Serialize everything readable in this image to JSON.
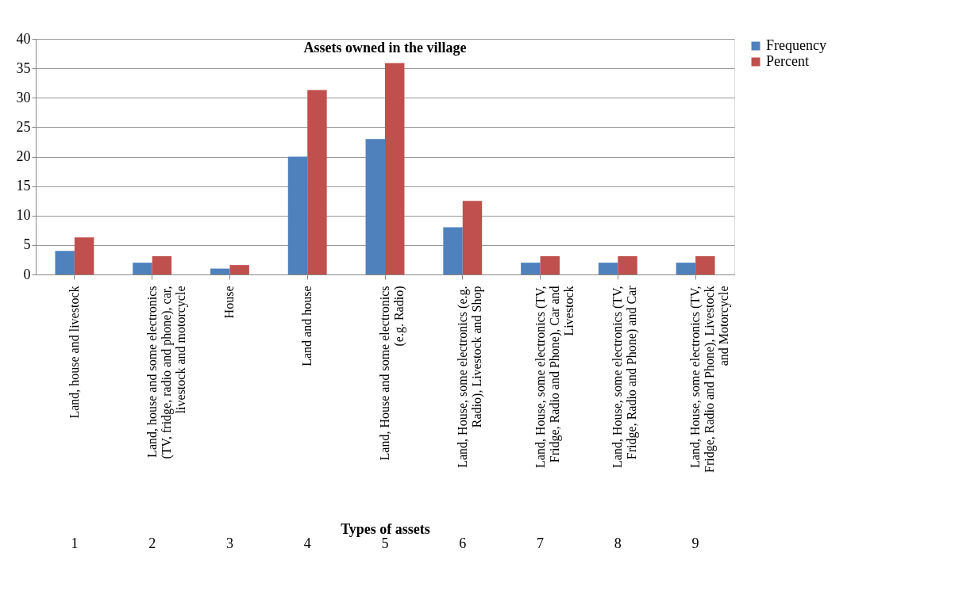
{
  "chart_data": {
    "type": "bar",
    "title": "Assets owned in the village",
    "xlabel": "Types of assets",
    "categories": [
      "Land, house and livestock",
      "Land, house and some electronics (TV, fridge, radio and phone), car, livestock and motorcycle",
      "House",
      "Land and house",
      "Land, House and some electronics (e.g. Radio)",
      "Land, House, some electronics (e.g. Radio), Livestock and Shop",
      "Land, House, some electronics (TV, Fridge, Radio and Phone), Car and Livestock",
      "Land, House, some electronics (TV, Fridge, Radio and Phone) and Car",
      "Land, House, some electronics (TV, Fridge, Radio and Phone), Livestock and Motorcycle"
    ],
    "series": [
      {
        "name": "Frequency",
        "color": "#4f81bd",
        "values": [
          4,
          2,
          1,
          20,
          23,
          8,
          2,
          2,
          2
        ]
      },
      {
        "name": "Percent",
        "color": "#c0504d",
        "values": [
          6.3,
          3.1,
          1.6,
          31.3,
          35.9,
          12.5,
          3.1,
          3.1,
          3.1
        ]
      }
    ],
    "annotations": [
      "1",
      "2",
      "3",
      "4",
      "5",
      "6",
      "7",
      "8",
      "9"
    ],
    "ylim": [
      0,
      40
    ],
    "yticks": [
      0,
      5,
      10,
      15,
      20,
      25,
      30,
      35,
      40
    ],
    "grid": "y",
    "legend": "right"
  }
}
